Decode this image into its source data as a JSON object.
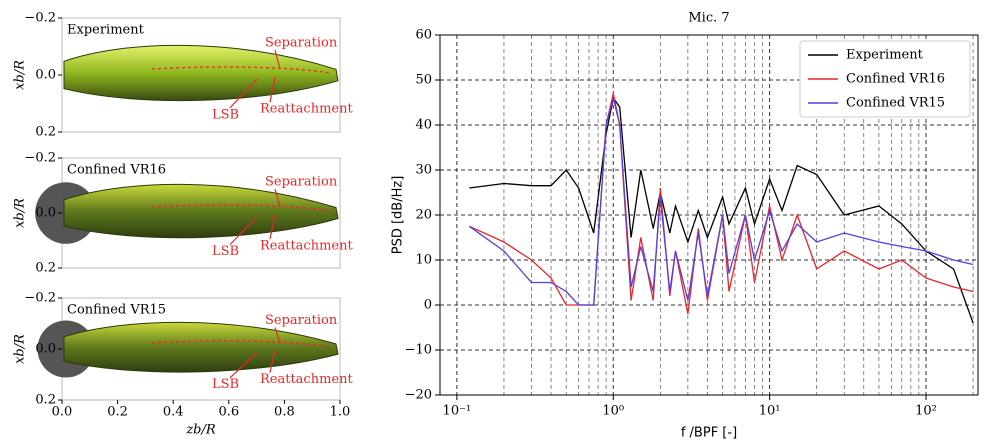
{
  "chart_data": [
    {
      "type": "flow-image",
      "title": "Experiment",
      "ylabel": "xb/R",
      "ylim": [
        -0.2,
        0.2
      ],
      "y_inverted": true,
      "yticks": [
        {
          "value": -0.2,
          "label": "−0.2"
        },
        {
          "value": 0,
          "label": "0.0"
        },
        0.2
      ],
      "annotations": [
        "Separation",
        "LSB",
        "Reattachment"
      ]
    },
    {
      "type": "flow-image",
      "title": "Confined VR16",
      "ylabel": "xb/R",
      "ylim": [
        -0.2,
        0.2
      ],
      "y_inverted": true,
      "yticks": [
        {
          "value": -0.2,
          "label": "−0.2"
        },
        {
          "value": 0,
          "label": "0.0"
        },
        0.2
      ],
      "annotations": [
        "Separation",
        "LSB",
        "Reattachment"
      ]
    },
    {
      "type": "flow-image",
      "title": "Confined VR15",
      "ylabel": "xb/R",
      "xlabel": "zb/R",
      "ylim": [
        -0.2,
        0.2
      ],
      "y_inverted": true,
      "xlim": [
        0,
        1
      ],
      "yticks": [
        {
          "value": -0.2,
          "label": "−0.2"
        },
        {
          "value": 0,
          "label": "0.0"
        },
        0.2
      ],
      "xticks": [
        {
          "value": 0,
          "label": "0.0"
        },
        0.2,
        0.4,
        0.6,
        0.8,
        {
          "value": 1,
          "label": "1.0"
        }
      ],
      "annotations": [
        "Separation",
        "LSB",
        "Reattachment"
      ]
    },
    {
      "type": "line",
      "title": "Mic. 7",
      "xlabel": "f /BPF [-]",
      "ylabel": "PSD [dB/Hz]",
      "xscale": "log",
      "grid": true,
      "legend": "upper right",
      "xlim": [
        0.078,
        215
      ],
      "ylim": [
        -20,
        60
      ],
      "xticks": [
        {
          "value": 0.1,
          "label": "10⁻¹"
        },
        {
          "value": 1,
          "label": "10⁰"
        },
        {
          "value": 10,
          "label": "10¹"
        },
        {
          "value": 100,
          "label": "10²"
        }
      ],
      "xminorticks": [
        0.2,
        0.3,
        0.4,
        0.5,
        0.6,
        0.7,
        0.8,
        0.9,
        2,
        3,
        4,
        5,
        6,
        7,
        8,
        9,
        20,
        30,
        40,
        50,
        60,
        70,
        80,
        90,
        200
      ],
      "yticks": [
        {
          "value": -20,
          "label": "−20"
        },
        {
          "value": -10,
          "label": "−10"
        },
        0,
        10,
        20,
        30,
        40,
        50,
        60
      ],
      "x": [
        0.12,
        0.2,
        0.3,
        0.4,
        0.5,
        0.6,
        0.75,
        0.9,
        1.0,
        1.1,
        1.3,
        1.5,
        1.8,
        2.0,
        2.3,
        2.5,
        3,
        3.5,
        4,
        5,
        5.5,
        7,
        8,
        10,
        12,
        15,
        20,
        30,
        50,
        70,
        100,
        150,
        200
      ],
      "series": [
        {
          "name": "Experiment",
          "color": "#000000",
          "values": [
            26,
            27,
            26.5,
            26.5,
            30,
            26,
            16,
            38,
            46,
            44,
            15,
            30,
            17,
            25,
            16,
            22,
            14,
            21,
            15,
            24,
            18,
            26,
            18,
            28,
            21,
            31,
            29,
            20,
            22,
            18,
            12,
            8,
            -4
          ]
        },
        {
          "name": "Confined VR16",
          "color": "#e8272a",
          "values": [
            17.5,
            14,
            10,
            6,
            0,
            0,
            0,
            40,
            47,
            40,
            1,
            15,
            1,
            26,
            2,
            12,
            -2,
            17,
            1,
            20,
            3,
            20,
            5,
            22,
            10,
            20,
            8,
            12,
            8,
            10,
            6,
            4,
            3
          ]
        },
        {
          "name": "Confined VR15",
          "color": "#5a3ce0",
          "values": [
            17.5,
            12,
            5,
            5,
            3,
            0,
            0,
            40,
            46,
            40,
            4,
            13,
            3,
            24,
            3,
            12,
            1,
            16,
            2,
            20,
            7,
            20,
            10,
            21,
            12,
            18,
            14,
            16,
            14,
            13,
            12,
            10,
            9
          ]
        }
      ]
    }
  ]
}
